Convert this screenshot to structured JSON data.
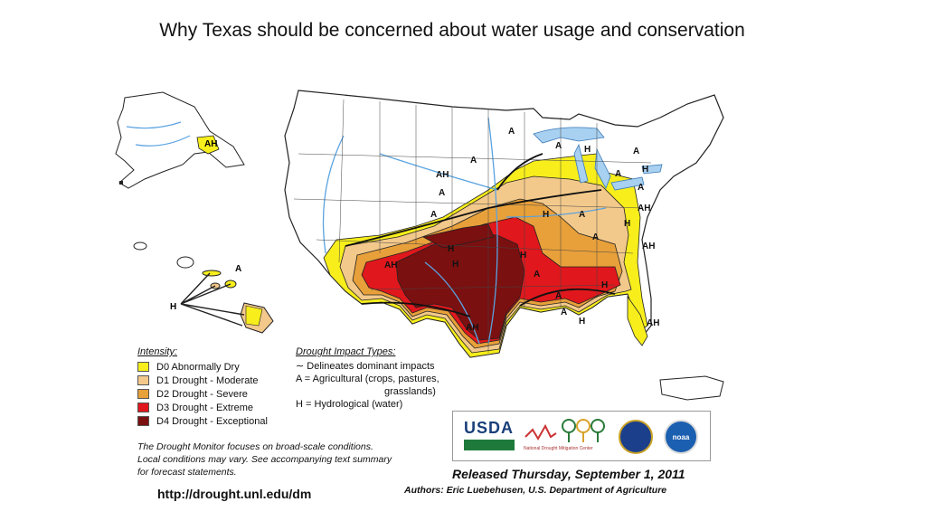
{
  "title": "Why Texas should be concerned about water usage and conservation",
  "colors": {
    "d0": "#f7ee1b",
    "d1": "#f3c98b",
    "d2": "#e8a03a",
    "d3": "#e0171c",
    "d4": "#7a1010",
    "water": "#a8d0f0",
    "border": "#222222"
  },
  "map_labels": [
    "AH",
    "A",
    "H",
    "A",
    "A",
    "A",
    "AH",
    "A",
    "A",
    "H",
    "H",
    "A",
    "A",
    "A",
    "H",
    "AH",
    "A",
    "AH",
    "AH",
    "H",
    "H",
    "H",
    "A",
    "H",
    "A",
    "H",
    "AH",
    "A"
  ],
  "legend": {
    "intensity_heading": "Intensity:",
    "intensity": [
      {
        "label": "D0 Abnormally Dry",
        "color": "#f7ee1b"
      },
      {
        "label": "D1 Drought - Moderate",
        "color": "#f3c98b"
      },
      {
        "label": "D2 Drought - Severe",
        "color": "#e8a03a"
      },
      {
        "label": "D3 Drought - Extreme",
        "color": "#e0171c"
      },
      {
        "label": "D4 Drought - Exceptional",
        "color": "#7a1010"
      }
    ],
    "impact_heading": "Drought Impact Types:",
    "impacts": [
      "Delineates dominant impacts",
      "A = Agricultural (crops, pastures,",
      "grasslands)",
      "H = Hydrological (water)"
    ]
  },
  "note_lines": [
    "The Drought Monitor focuses on broad-scale conditions.",
    "Local conditions may vary. See accompanying text summary",
    "for forecast statements."
  ],
  "url": "http://drought.unl.edu/dm",
  "released": "Released Thursday, September 1, 2011",
  "authors": "Authors: Eric Luebehusen, U.S. Department of Agriculture",
  "logos": {
    "usda": "USDA",
    "ndmc": "National Drought Mitigation Center",
    "noaa": "noaa"
  }
}
